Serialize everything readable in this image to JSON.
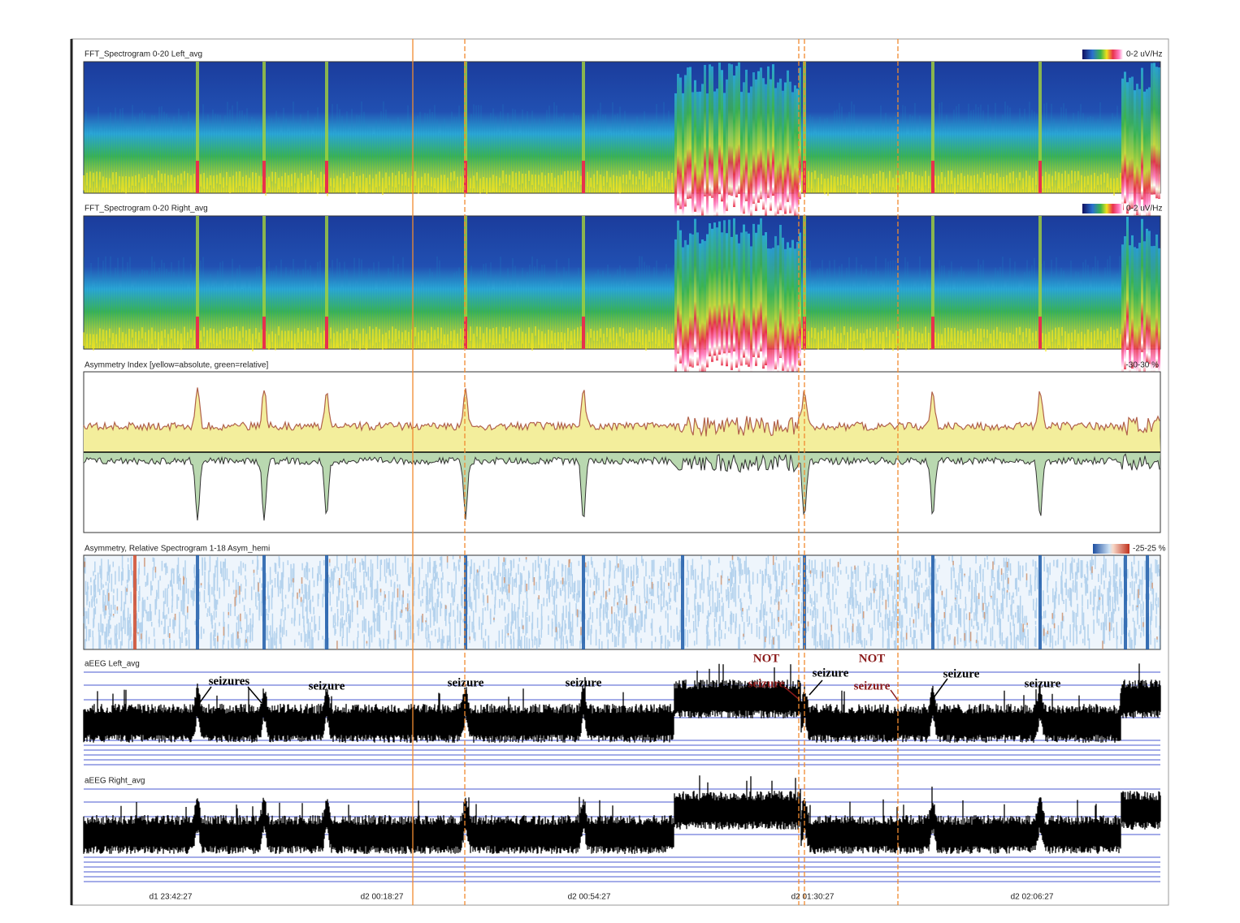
{
  "panels": [
    {
      "title": "FFT_Spectrogram 0-20 Left_avg",
      "scale": "0-2 uV/Hz"
    },
    {
      "title": "FFT_Spectrogram 0-20 Right_avg",
      "scale": "0-2 uV/Hz"
    },
    {
      "title": "Asymmetry Index [yellow=absolute, green=relative]",
      "scale": "-30-30 %"
    },
    {
      "title": "Asymmetry, Relative Spectrogram 1-18 Asym_hemi",
      "scale": "-25-25 %"
    },
    {
      "title": "aEEG Left_avg"
    },
    {
      "title": "aEEG Right_avg"
    }
  ],
  "annotations": [
    {
      "text": "seizures"
    },
    {
      "text": "seizure"
    },
    {
      "text": "seizure"
    },
    {
      "text": "seizure"
    },
    {
      "text": "NOT"
    },
    {
      "text": "seizure"
    },
    {
      "text": "seizure"
    },
    {
      "text": "NOT"
    },
    {
      "text": "seizure"
    },
    {
      "text": "seizure"
    },
    {
      "text": "seizure"
    }
  ],
  "time_labels": [
    "d1 23:42:27",
    "d2 00:18:27",
    "d2 00:54:27",
    "d2 01:30:27",
    "d2 02:06:27"
  ]
}
